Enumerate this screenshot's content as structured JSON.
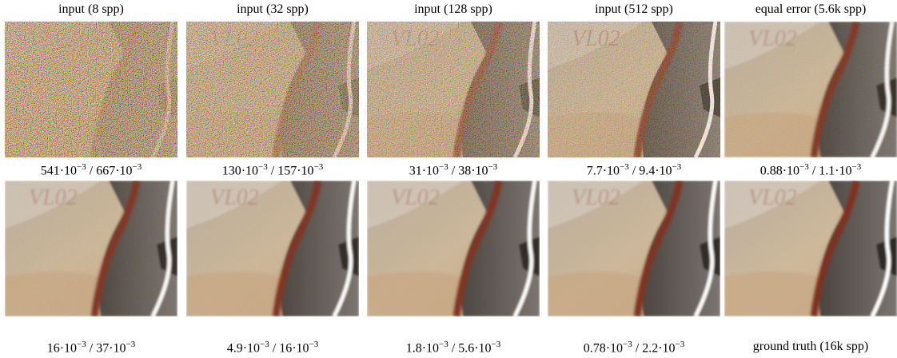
{
  "panels": [
    {
      "label": "input (8 spp)",
      "caption": [
        {
          "text": "541·10"
        },
        {
          "sup": "−3"
        },
        {
          "text": " / 667·10"
        },
        {
          "sup": "−3"
        }
      ]
    },
    {
      "label": "input (32 spp)",
      "caption": [
        {
          "text": "130·10"
        },
        {
          "sup": "−3"
        },
        {
          "text": " / 157·10"
        },
        {
          "sup": "−3"
        }
      ]
    },
    {
      "label": "input (128 spp)",
      "caption": [
        {
          "text": "31·10"
        },
        {
          "sup": "−3"
        },
        {
          "text": " / 38·10"
        },
        {
          "sup": "−3"
        }
      ]
    },
    {
      "label": "input (512 spp)",
      "caption": [
        {
          "text": "7.7·10"
        },
        {
          "sup": "−3"
        },
        {
          "text": " / 9.4·10"
        },
        {
          "sup": "−3"
        }
      ]
    },
    {
      "label": "equal error (5.6k spp)",
      "caption": [
        {
          "text": "0.88·10"
        },
        {
          "sup": "−3"
        },
        {
          "text": " / 1.1·10"
        },
        {
          "sup": "−3"
        }
      ]
    },
    {
      "caption": [
        {
          "text": "16·10"
        },
        {
          "sup": "−3"
        },
        {
          "text": " / 37·10"
        },
        {
          "sup": "−3"
        }
      ]
    },
    {
      "caption": [
        {
          "text": "4.9·10"
        },
        {
          "sup": "−3"
        },
        {
          "text": " / 16·10"
        },
        {
          "sup": "−3"
        }
      ]
    },
    {
      "caption": [
        {
          "text": "1.8·10"
        },
        {
          "sup": "−3"
        },
        {
          "text": " / 5.6·10"
        },
        {
          "sup": "−3"
        }
      ]
    },
    {
      "caption": [
        {
          "text": "0.78·10"
        },
        {
          "sup": "−3"
        },
        {
          "text": " / 2.2·10"
        },
        {
          "sup": "−3"
        }
      ]
    },
    {
      "caption": [
        {
          "text": "ground truth (16k spp)"
        }
      ]
    }
  ]
}
